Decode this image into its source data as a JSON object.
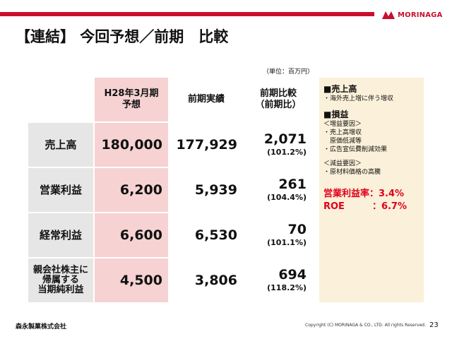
{
  "header": {
    "brand": "MORINAGA",
    "title": "【連結】 今回予想／前期　比較"
  },
  "unit": "（単位：百万円）",
  "table": {
    "columns": [
      "H28年3月期\n予想",
      "前期実績",
      "前期比較\n（前期比）"
    ],
    "rows": [
      {
        "label": "売上高",
        "forecast": "180,000",
        "prior": "177,929",
        "diff": "2,071",
        "ratio": "(101.2%)"
      },
      {
        "label": "営業利益",
        "forecast": "6,200",
        "prior": "5,939",
        "diff": "261",
        "ratio": "(104.4%)"
      },
      {
        "label": "経常利益",
        "forecast": "6,600",
        "prior": "6,530",
        "diff": "70",
        "ratio": "(101.1%)"
      },
      {
        "label": "親会社株主に\n帰属する\n当期純利益",
        "forecast": "4,500",
        "prior": "3,806",
        "diff": "694",
        "ratio": "(118.2%)"
      }
    ]
  },
  "sidebar": {
    "sales_heading": "■売上高",
    "sales_note": "・海外売上増に伴う増収",
    "pl_heading": "■損益",
    "increase_heading": "＜増益要因＞",
    "increase_1": "・売上高増収",
    "increase_2": "　原価低減等",
    "increase_3": "・広告宣伝費削減効果",
    "decrease_heading": "＜減益要因＞",
    "decrease_1": "・原材料価格の高騰",
    "op_margin": "営業利益率：3.4%",
    "roe": "ROE　　　：6.7%"
  },
  "footer": {
    "company": "森永製菓株式会社",
    "copyright": "Copyright (C) MORINAGA & CO., LTD. All rights Reserved.",
    "page": "23"
  },
  "colors": {
    "brand_red": "#c8102e",
    "forecast_bg": "#f6d2d2",
    "label_bg": "#e6e6e6",
    "sidebar_bg": "#fbf0d9",
    "highlight_text": "#e0001b"
  }
}
